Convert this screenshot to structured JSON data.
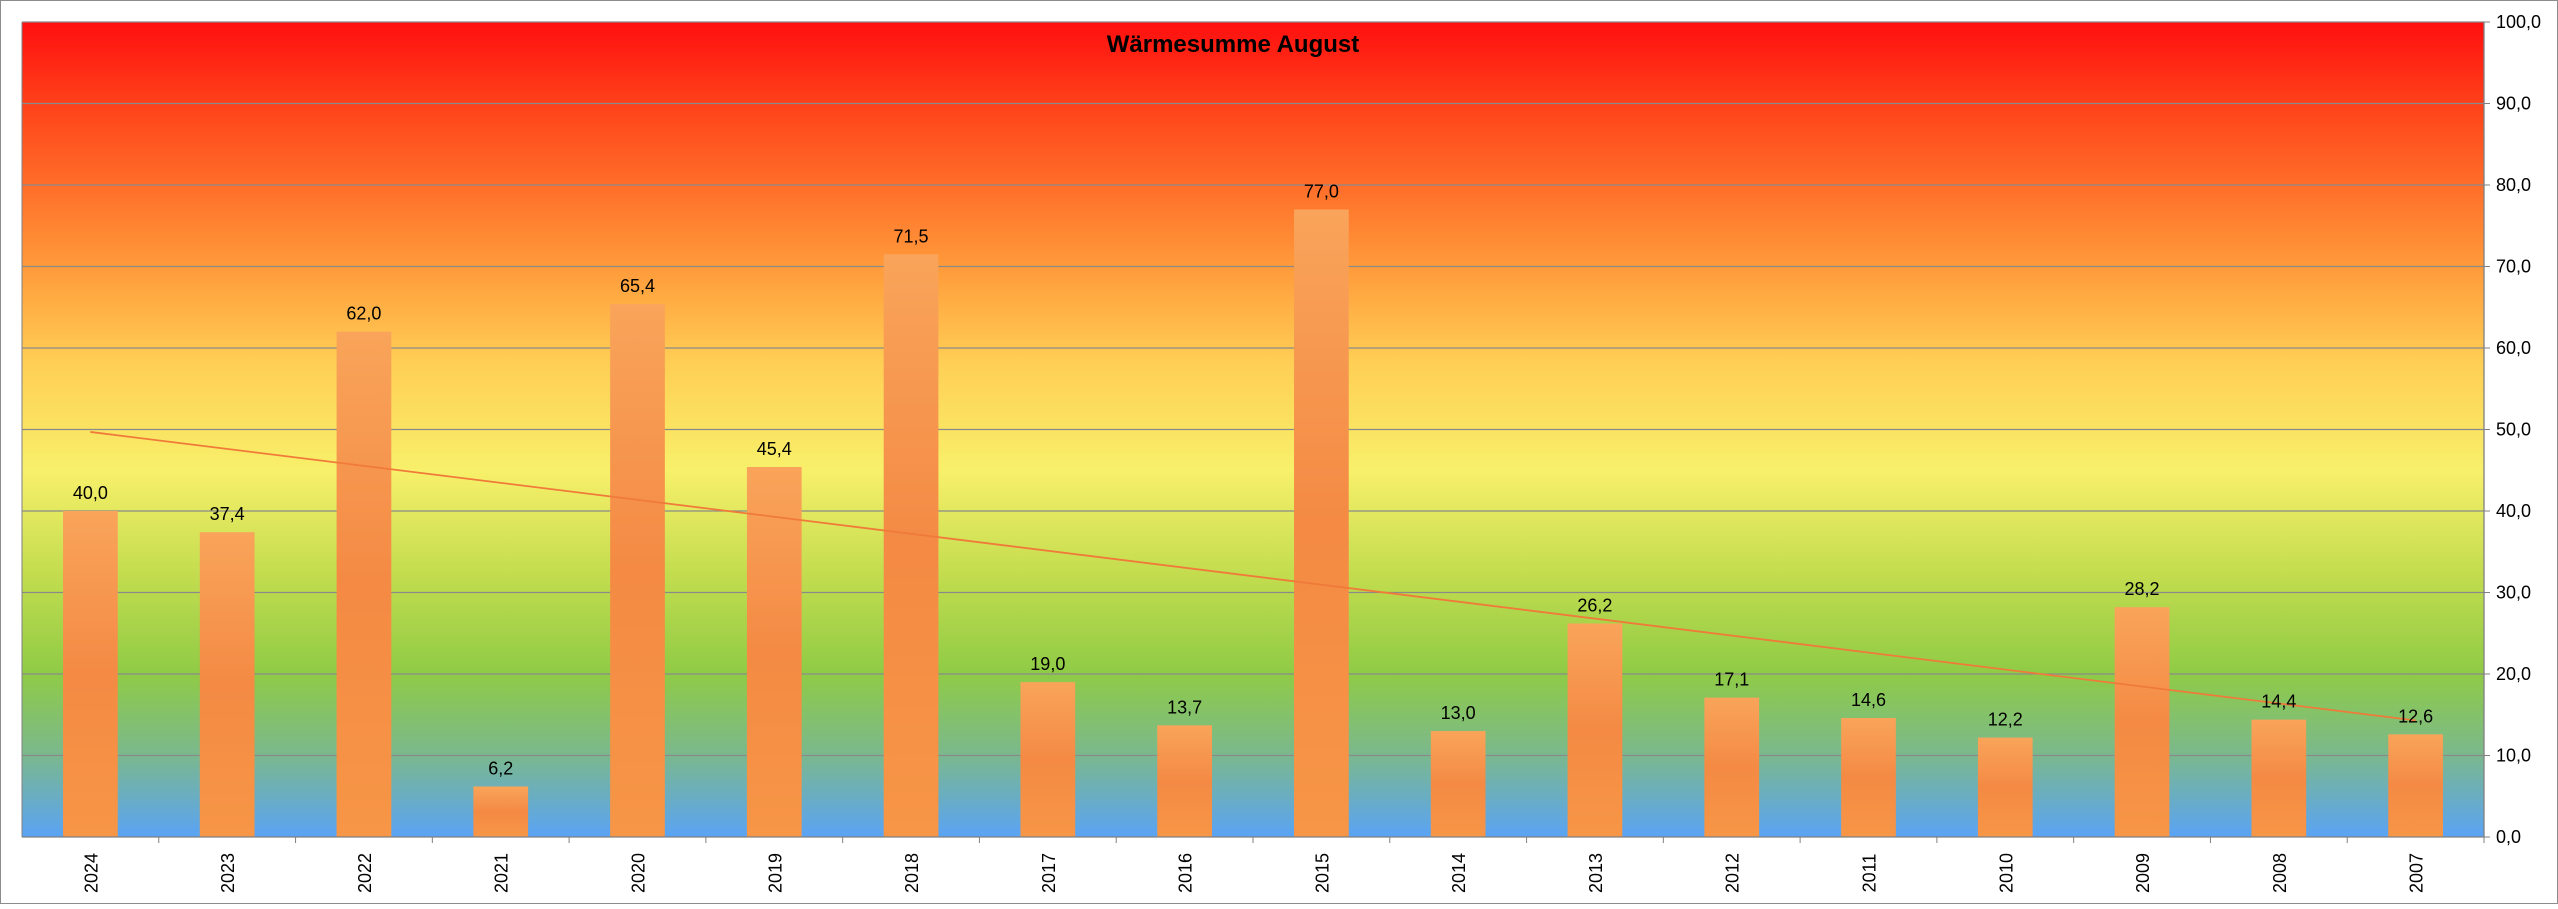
{
  "chart_data": {
    "type": "bar",
    "title": "Wärmesumme August",
    "xlabel": "",
    "ylabel": "",
    "categories": [
      "2024",
      "2023",
      "2022",
      "2021",
      "2020",
      "2019",
      "2018",
      "2017",
      "2016",
      "2015",
      "2014",
      "2013",
      "2012",
      "2011",
      "2010",
      "2009",
      "2008",
      "2007"
    ],
    "values": [
      40.0,
      37.4,
      62.0,
      6.2,
      65.4,
      45.4,
      71.5,
      19.0,
      13.7,
      77.0,
      13.0,
      26.2,
      17.1,
      14.6,
      12.2,
      28.2,
      14.4,
      12.6
    ],
    "value_labels": [
      "40,0",
      "37,4",
      "62,0",
      "6,2",
      "65,4",
      "45,4",
      "71,5",
      "19,0",
      "13,7",
      "77,0",
      "13,0",
      "26,2",
      "17,1",
      "14,6",
      "12,2",
      "28,2",
      "14,4",
      "12,6"
    ],
    "ylim": [
      0,
      100
    ],
    "yticks": [
      0,
      10,
      20,
      30,
      40,
      50,
      60,
      70,
      80,
      90,
      100
    ],
    "ytick_labels": [
      "0,0",
      "10,0",
      "20,0",
      "30,0",
      "40,0",
      "50,0",
      "60,0",
      "70,0",
      "80,0",
      "90,0",
      "100,0"
    ],
    "y_axis_side": "right",
    "grid": true,
    "legend": "none",
    "trendline": {
      "type": "linear",
      "start": 49.7,
      "end": 14.3,
      "color": "#f07a3a"
    },
    "colors": {
      "bar": "#f79646",
      "bar_light": "#f9a65c",
      "gridline": "#8a8a8a",
      "background_gradient": [
        "#ff1010",
        "#ff5a24",
        "#ffa040",
        "#ffd055",
        "#f8f06a",
        "#c8df50",
        "#90cc48",
        "#78c089",
        "#5fa6f0"
      ]
    }
  }
}
